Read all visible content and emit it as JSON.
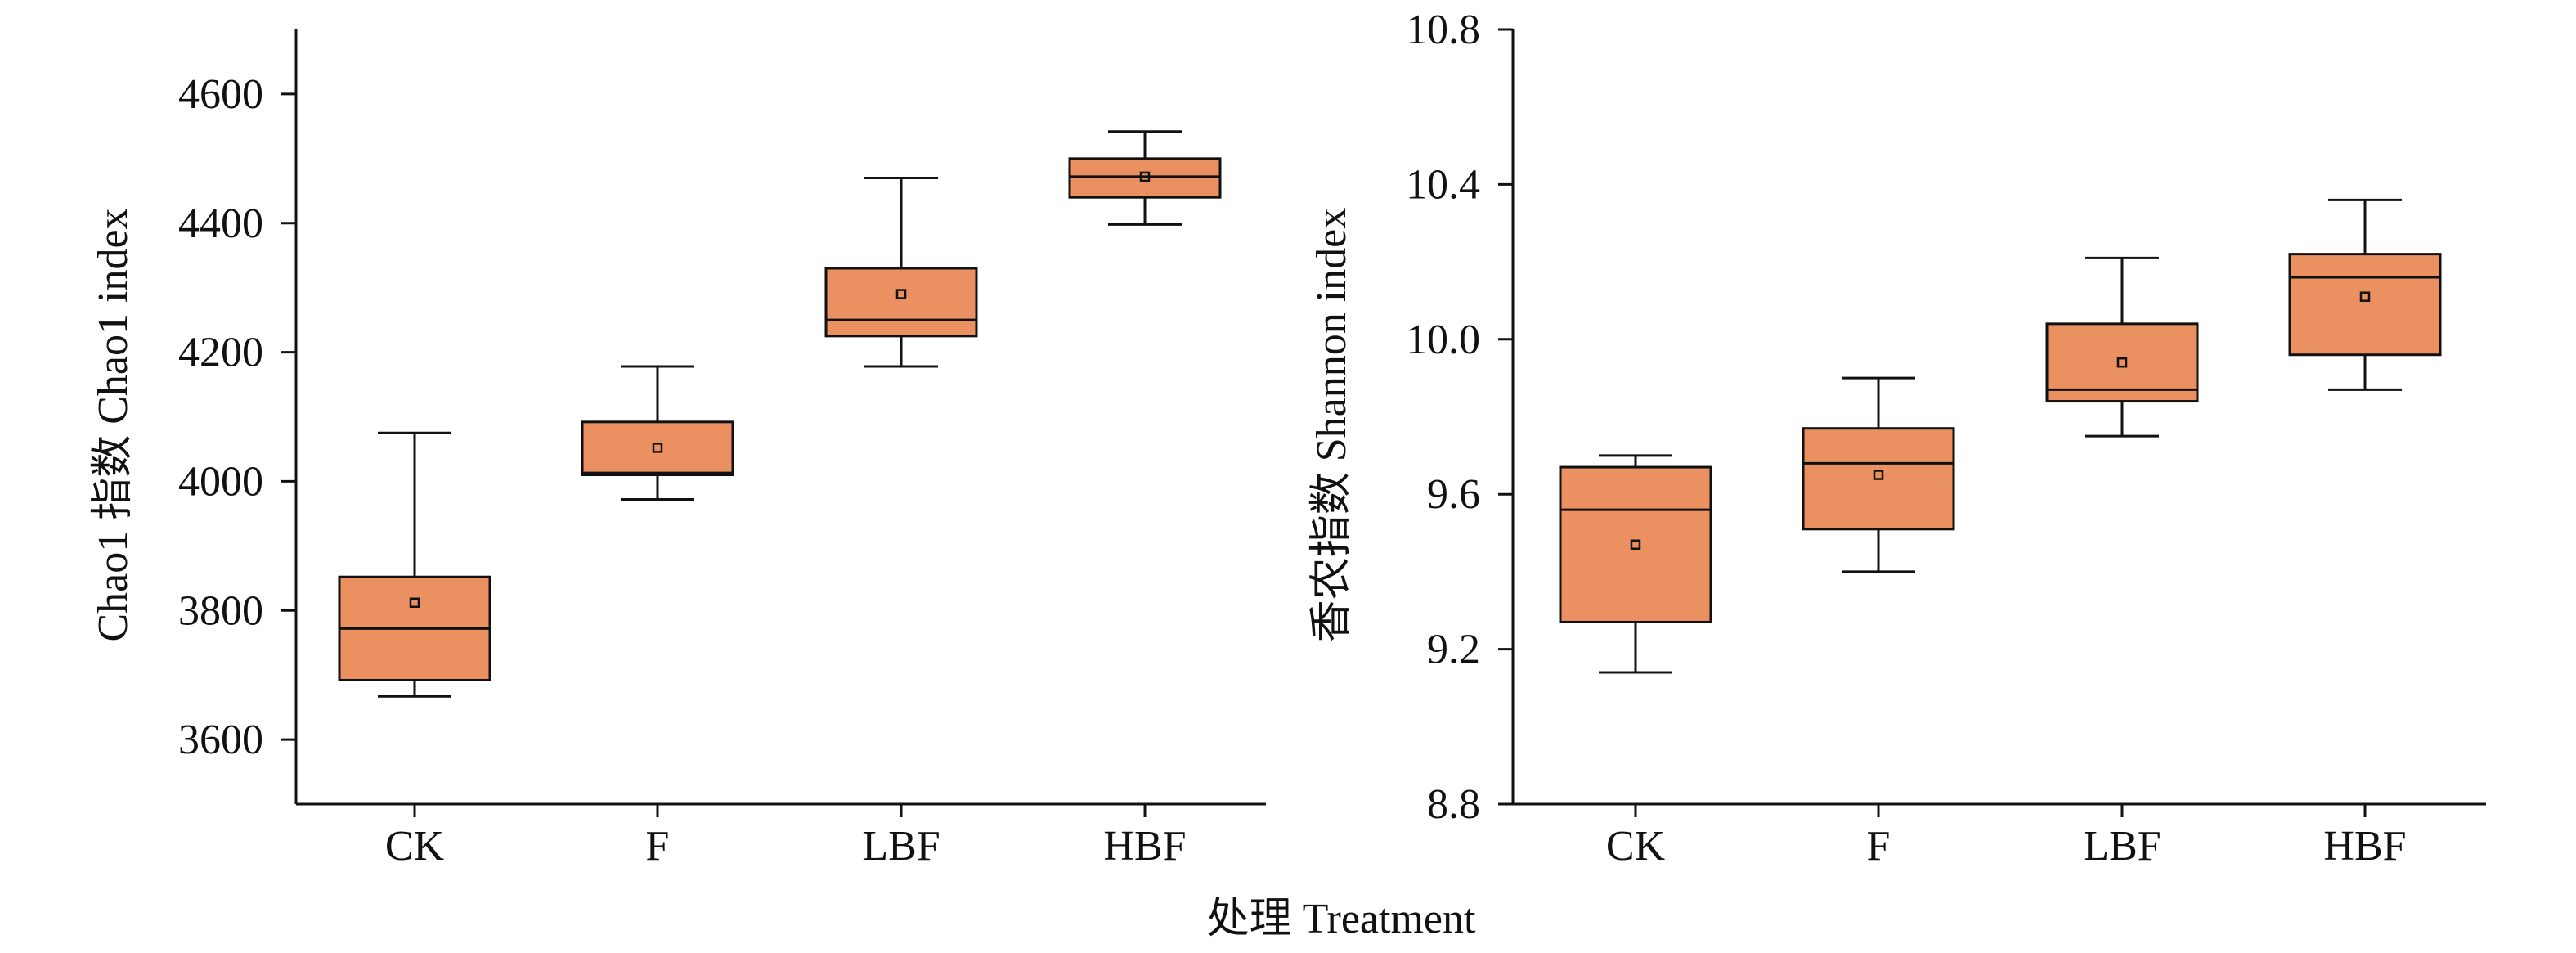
{
  "chart_data": [
    {
      "type": "box",
      "ylabel": "Chao1 指数 Chao1 index",
      "xlabel": "",
      "ylim": [
        3500,
        4700
      ],
      "yticks": [
        3600,
        3800,
        4000,
        4200,
        4400,
        4600
      ],
      "categories": [
        "CK",
        "F",
        "LBF",
        "HBF"
      ],
      "boxes": [
        {
          "category": "CK",
          "min": 3667,
          "q1": 3692,
          "median": 3772,
          "q3": 3852,
          "max": 4075,
          "mean": 3812
        },
        {
          "category": "F",
          "min": 3972,
          "q1": 4010,
          "median": 4013,
          "q3": 4092,
          "max": 4178,
          "mean": 4052
        },
        {
          "category": "LBF",
          "min": 4178,
          "q1": 4225,
          "median": 4250,
          "q3": 4330,
          "max": 4470,
          "mean": 4290
        },
        {
          "category": "HBF",
          "min": 4398,
          "q1": 4440,
          "median": 4472,
          "q3": 4500,
          "max": 4542,
          "mean": 4472
        }
      ]
    },
    {
      "type": "box",
      "ylabel": "香农指数 Shannon index",
      "xlabel": "",
      "ylim": [
        8.8,
        10.8
      ],
      "yticks": [
        "8.8",
        "9.2",
        "9.6",
        "10.0",
        "10.4",
        "10.8"
      ],
      "categories": [
        "CK",
        "F",
        "LBF",
        "HBF"
      ],
      "boxes": [
        {
          "category": "CK",
          "min": 9.14,
          "q1": 9.27,
          "median": 9.56,
          "q3": 9.67,
          "max": 9.7,
          "mean": 9.47
        },
        {
          "category": "F",
          "min": 9.4,
          "q1": 9.51,
          "median": 9.68,
          "q3": 9.77,
          "max": 9.9,
          "mean": 9.65
        },
        {
          "category": "LBF",
          "min": 9.75,
          "q1": 9.84,
          "median": 9.87,
          "q3": 10.04,
          "max": 10.21,
          "mean": 9.94
        },
        {
          "category": "HBF",
          "min": 9.87,
          "q1": 9.96,
          "median": 10.16,
          "q3": 10.22,
          "max": 10.36,
          "mean": 10.11
        }
      ]
    }
  ],
  "shared_xlabel": "处理 Treatment",
  "colors": {
    "box_fill": "#EB9060",
    "stroke": "#111111"
  }
}
